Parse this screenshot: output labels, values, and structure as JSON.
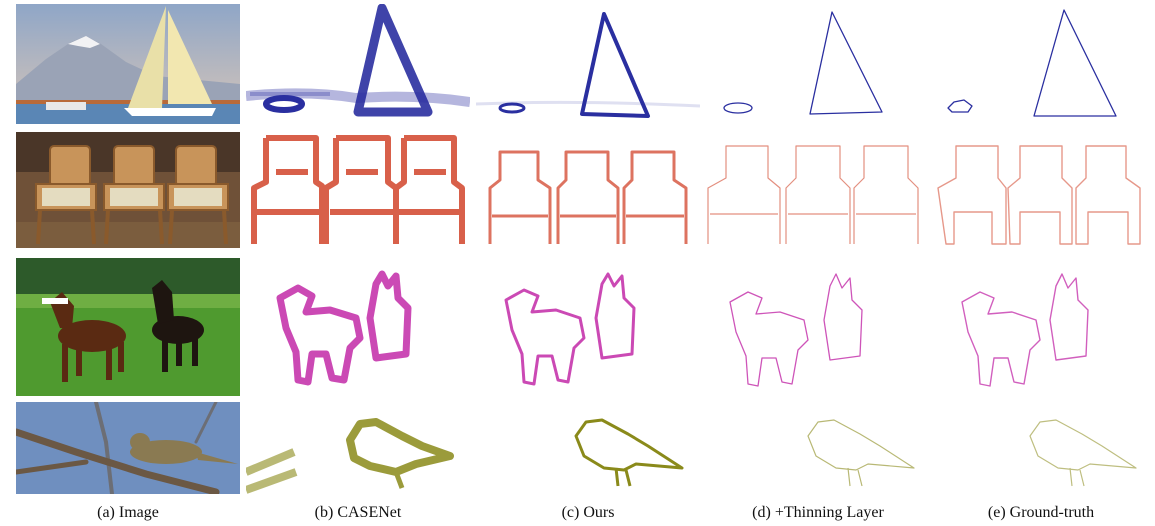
{
  "figure": {
    "columns": [
      {
        "caption": "(a) Image"
      },
      {
        "caption": "(b) CASENet"
      },
      {
        "caption": "(c) Ours"
      },
      {
        "caption": "(d) +Thinning Layer"
      },
      {
        "caption": "(e) Ground-truth"
      }
    ],
    "rows": [
      {
        "subject": "sailboat",
        "edge_color": "#2a2fa0"
      },
      {
        "subject": "chairs",
        "edge_color": "#d2452b"
      },
      {
        "subject": "horses",
        "edge_color": "#c22aa8"
      },
      {
        "subject": "bird",
        "edge_color": "#8a8a1a"
      }
    ]
  }
}
